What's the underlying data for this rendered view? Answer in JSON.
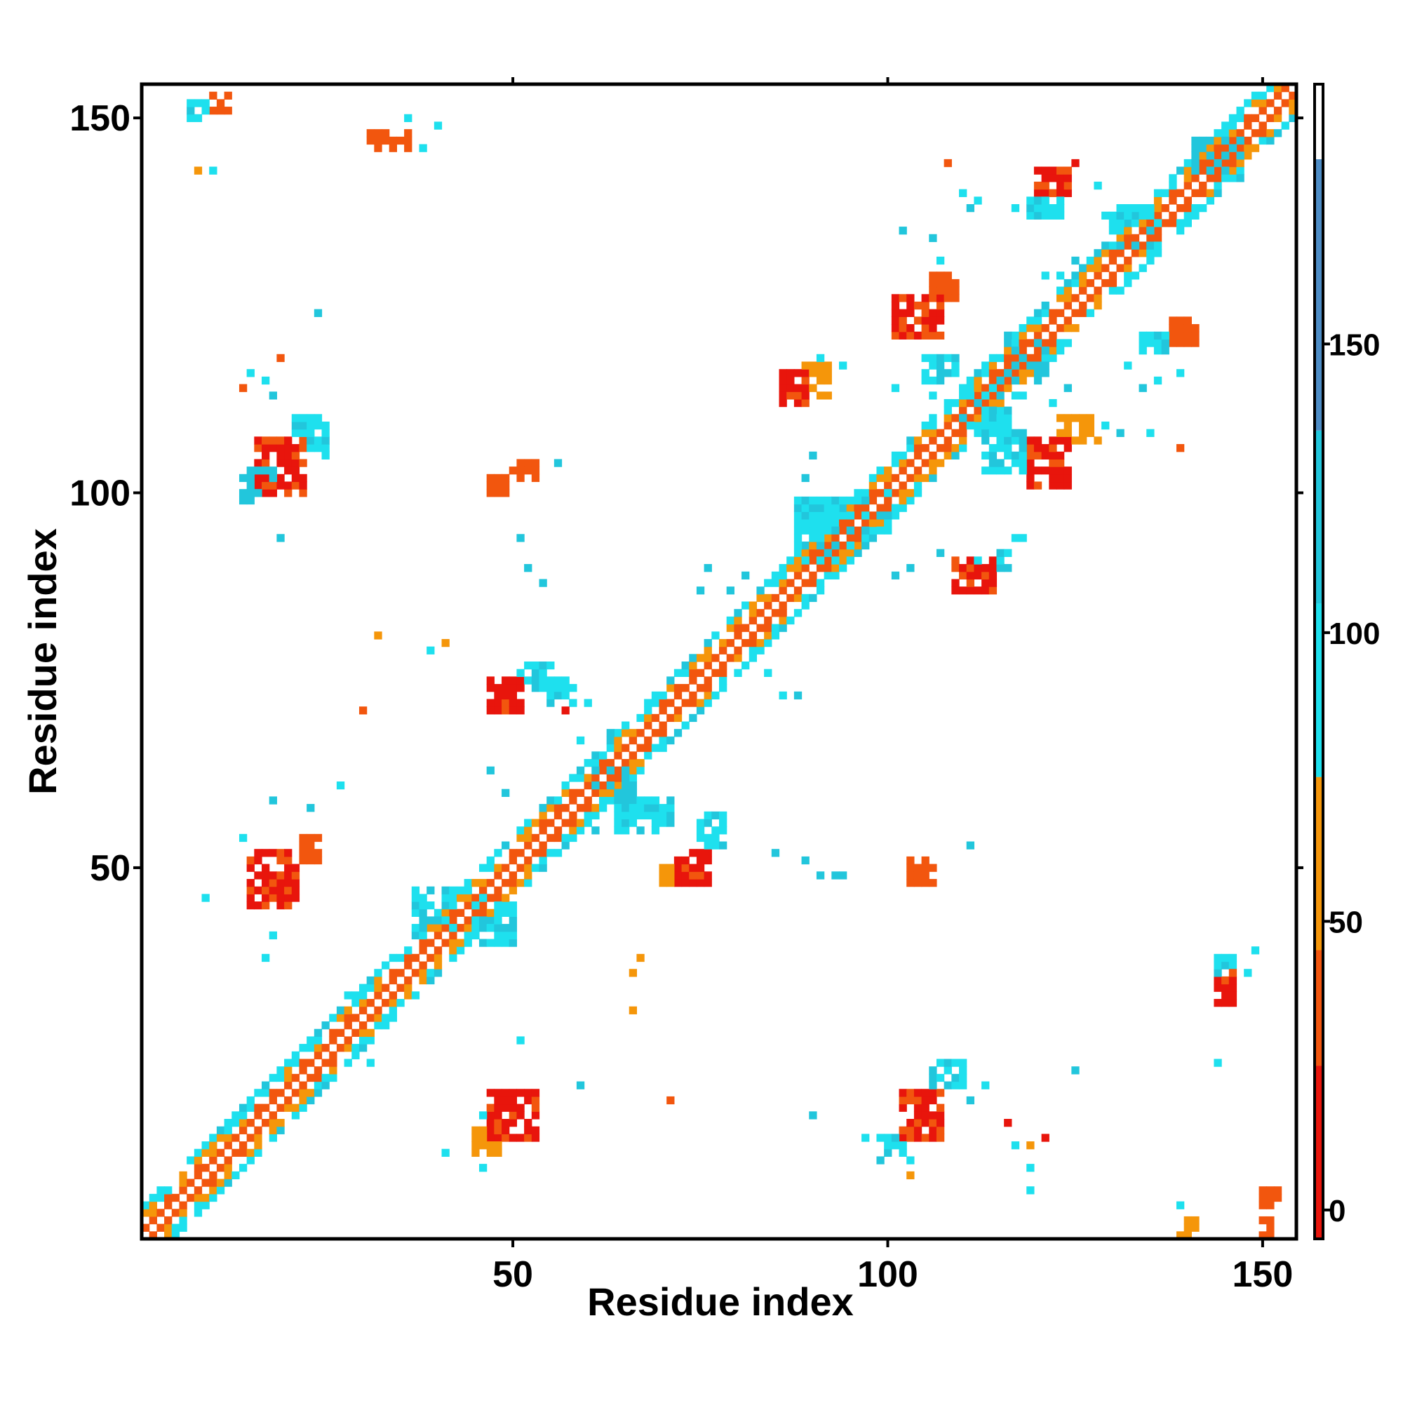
{
  "chart_data": {
    "type": "heatmap",
    "title": "",
    "xlabel": "Residue index",
    "ylabel": "Residue index",
    "xlim": [
      1,
      154
    ],
    "ylim": [
      1,
      154
    ],
    "x_ticks": [
      50,
      100,
      150
    ],
    "y_ticks": [
      50,
      100,
      150
    ],
    "grid": false,
    "cell_value_note": "colour-coded contact value per residue pair",
    "colorbar": {
      "ticks": [
        0,
        50,
        100,
        150
      ],
      "range": [
        -5,
        195
      ],
      "bands": [
        {
          "from": -5,
          "to": 25,
          "color": "#e8150c"
        },
        {
          "from": 25,
          "to": 45,
          "color": "#f2560e"
        },
        {
          "from": 45,
          "to": 75,
          "color": "#f5960a"
        },
        {
          "from": 75,
          "to": 105,
          "color": "#1ee0ee"
        },
        {
          "from": 105,
          "to": 135,
          "color": "#22c6dc"
        },
        {
          "from": 135,
          "to": 182,
          "color": "#4d8cc5"
        },
        {
          "from": 182,
          "to": 195,
          "color": "#ffffff"
        }
      ]
    },
    "colors": {
      "red": "#e8150c",
      "red_orange": "#f2560e",
      "orange": "#f5960a",
      "cyan": "#1ee0ee",
      "teal": "#22c6dc",
      "blue": "#4d8cc5"
    },
    "diagonal_bands": [
      {
        "start": 1,
        "end": 154,
        "halfwidth": 4
      }
    ],
    "patches": [
      {
        "x": [
          16,
          22
        ],
        "y": [
          100,
          107
        ],
        "color": "red"
      },
      {
        "x": [
          14,
          18
        ],
        "y": [
          99,
          103
        ],
        "color": "teal"
      },
      {
        "x": [
          21,
          25
        ],
        "y": [
          106,
          110
        ],
        "color": "cyan"
      },
      {
        "x": [
          15,
          21
        ],
        "y": [
          45,
          52
        ],
        "color": "red"
      },
      {
        "x": [
          22,
          24
        ],
        "y": [
          51,
          54
        ],
        "color": "red_orange"
      },
      {
        "x": [
          47,
          53
        ],
        "y": [
          14,
          20
        ],
        "color": "red"
      },
      {
        "x": [
          45,
          48
        ],
        "y": [
          12,
          15
        ],
        "color": "orange"
      },
      {
        "x": [
          102,
          107
        ],
        "y": [
          14,
          20
        ],
        "color": "red"
      },
      {
        "x": [
          106,
          110
        ],
        "y": [
          21,
          24
        ],
        "color": "cyan"
      },
      {
        "x": [
          99,
          102
        ],
        "y": [
          12,
          14
        ],
        "color": "cyan"
      },
      {
        "x": [
          119,
          124
        ],
        "y": [
          101,
          107
        ],
        "color": "red"
      },
      {
        "x": [
          123,
          128
        ],
        "y": [
          107,
          110
        ],
        "color": "orange"
      },
      {
        "x": [
          113,
          118
        ],
        "y": [
          103,
          108
        ],
        "color": "cyan"
      },
      {
        "x": [
          101,
          107
        ],
        "y": [
          121,
          126
        ],
        "color": "red"
      },
      {
        "x": [
          106,
          109
        ],
        "y": [
          126,
          129
        ],
        "color": "red_orange"
      },
      {
        "x": [
          105,
          109
        ],
        "y": [
          115,
          118
        ],
        "color": "cyan"
      },
      {
        "x": [
          120,
          124
        ],
        "y": [
          140,
          143
        ],
        "color": "red"
      },
      {
        "x": [
          119,
          123
        ],
        "y": [
          137,
          139
        ],
        "color": "cyan"
      },
      {
        "x": [
          47,
          51
        ],
        "y": [
          71,
          75
        ],
        "color": "red"
      },
      {
        "x": [
          51,
          55
        ],
        "y": [
          74,
          77
        ],
        "color": "cyan"
      },
      {
        "x": [
          55,
          58
        ],
        "y": [
          72,
          75
        ],
        "color": "cyan"
      },
      {
        "x": [
          72,
          76
        ],
        "y": [
          48,
          52
        ],
        "color": "red"
      },
      {
        "x": [
          75,
          78
        ],
        "y": [
          53,
          57
        ],
        "color": "cyan"
      },
      {
        "x": [
          70,
          73
        ],
        "y": [
          48,
          50
        ],
        "color": "orange"
      },
      {
        "x": [
          86,
          89
        ],
        "y": [
          112,
          116
        ],
        "color": "red"
      },
      {
        "x": [
          89,
          92
        ],
        "y": [
          113,
          117
        ],
        "color": "orange"
      },
      {
        "x": [
          109,
          114
        ],
        "y": [
          87,
          91
        ],
        "color": "red"
      },
      {
        "x": [
          112,
          116
        ],
        "y": [
          90,
          92
        ],
        "color": "cyan"
      },
      {
        "x": [
          138,
          141
        ],
        "y": [
          120,
          123
        ],
        "color": "red_orange"
      },
      {
        "x": [
          134,
          137
        ],
        "y": [
          119,
          121
        ],
        "color": "cyan"
      },
      {
        "x": [
          144,
          146
        ],
        "y": [
          32,
          35
        ],
        "color": "red"
      },
      {
        "x": [
          144,
          146
        ],
        "y": [
          35,
          38
        ],
        "color": "cyan"
      },
      {
        "x": [
          31,
          36
        ],
        "y": [
          146,
          148
        ],
        "color": "red_orange"
      },
      {
        "x": [
          10,
          12
        ],
        "y": [
          151,
          153
        ],
        "color": "red_orange"
      },
      {
        "x": [
          7,
          9
        ],
        "y": [
          150,
          152
        ],
        "color": "cyan"
      },
      {
        "x": [
          50,
          53
        ],
        "y": [
          102,
          104
        ],
        "color": "red_orange"
      },
      {
        "x": [
          47,
          49
        ],
        "y": [
          100,
          102
        ],
        "color": "red_orange"
      },
      {
        "x": [
          103,
          106
        ],
        "y": [
          48,
          51
        ],
        "color": "red_orange"
      },
      {
        "x": [
          150,
          152
        ],
        "y": [
          5,
          7
        ],
        "color": "red_orange"
      },
      {
        "x": [
          139,
          141
        ],
        "y": [
          1,
          3
        ],
        "color": "orange"
      },
      {
        "x": [
          149,
          151
        ],
        "y": [
          1,
          3
        ],
        "color": "red_orange"
      },
      {
        "x": [
          61,
          66
        ],
        "y": [
          59,
          64
        ],
        "color": "teal"
      },
      {
        "x": [
          64,
          69
        ],
        "y": [
          55,
          59
        ],
        "color": "cyan"
      },
      {
        "x": [
          68,
          71
        ],
        "y": [
          56,
          59
        ],
        "color": "cyan"
      },
      {
        "x": [
          44,
          50
        ],
        "y": [
          40,
          46
        ],
        "color": "cyan"
      },
      {
        "x": [
          37,
          42
        ],
        "y": [
          42,
          47
        ],
        "color": "cyan"
      },
      {
        "x": [
          88,
          95
        ],
        "y": [
          91,
          99
        ],
        "color": "cyan"
      },
      {
        "x": [
          95,
          100
        ],
        "y": [
          95,
          100
        ],
        "color": "cyan"
      },
      {
        "x": [
          110,
          116
        ],
        "y": [
          109,
          116
        ],
        "color": "cyan"
      },
      {
        "x": [
          116,
          121
        ],
        "y": [
          115,
          121
        ],
        "color": "teal"
      },
      {
        "x": [
          130,
          136
        ],
        "y": [
          133,
          138
        ],
        "color": "cyan"
      },
      {
        "x": [
          141,
          147
        ],
        "y": [
          142,
          147
        ],
        "color": "teal"
      }
    ],
    "scatter_points": [
      [
        24,
        107,
        "orange"
      ],
      [
        25,
        105,
        "cyan"
      ],
      [
        14,
        54,
        "cyan"
      ],
      [
        18,
        59,
        "teal"
      ],
      [
        23,
        58,
        "teal"
      ],
      [
        9,
        46,
        "cyan"
      ],
      [
        18,
        41,
        "cyan"
      ],
      [
        17,
        38,
        "cyan"
      ],
      [
        28,
        33,
        "cyan"
      ],
      [
        34,
        33,
        "orange"
      ],
      [
        36,
        34,
        "red_orange"
      ],
      [
        30,
        71,
        "red_orange"
      ],
      [
        32,
        81,
        "orange"
      ],
      [
        39,
        79,
        "cyan"
      ],
      [
        41,
        80,
        "orange"
      ],
      [
        17,
        115,
        "cyan"
      ],
      [
        19,
        94,
        "teal"
      ],
      [
        18,
        113,
        "teal"
      ],
      [
        15,
        116,
        "cyan"
      ],
      [
        14,
        114,
        "red_orange"
      ],
      [
        19,
        118,
        "red_orange"
      ],
      [
        24,
        124,
        "teal"
      ],
      [
        10,
        143,
        "cyan"
      ],
      [
        8,
        143,
        "orange"
      ],
      [
        36,
        150,
        "cyan"
      ],
      [
        40,
        149,
        "cyan"
      ],
      [
        38,
        146,
        "cyan"
      ],
      [
        27,
        61,
        "cyan"
      ],
      [
        47,
        63,
        "teal"
      ],
      [
        49,
        60,
        "teal"
      ],
      [
        52,
        90,
        "teal"
      ],
      [
        54,
        88,
        "teal"
      ],
      [
        51,
        94,
        "teal"
      ],
      [
        56,
        104,
        "teal"
      ],
      [
        59,
        67,
        "cyan"
      ],
      [
        57,
        71,
        "red"
      ],
      [
        60,
        72,
        "cyan"
      ],
      [
        63,
        68,
        "teal"
      ],
      [
        61,
        55,
        "teal"
      ],
      [
        73,
        49,
        "red"
      ],
      [
        66,
        36,
        "orange"
      ],
      [
        67,
        38,
        "orange"
      ],
      [
        66,
        31,
        "orange"
      ],
      [
        71,
        19,
        "red_orange"
      ],
      [
        59,
        21,
        "teal"
      ],
      [
        51,
        27,
        "cyan"
      ],
      [
        46,
        17,
        "cyan"
      ],
      [
        41,
        12,
        "cyan"
      ],
      [
        46,
        10,
        "cyan"
      ],
      [
        31,
        24,
        "cyan"
      ],
      [
        75,
        87,
        "teal"
      ],
      [
        76,
        90,
        "teal"
      ],
      [
        84,
        76,
        "cyan"
      ],
      [
        86,
        73,
        "cyan"
      ],
      [
        88,
        73,
        "teal"
      ],
      [
        85,
        52,
        "teal"
      ],
      [
        89,
        51,
        "teal"
      ],
      [
        91,
        49,
        "teal"
      ],
      [
        93,
        49,
        "teal"
      ],
      [
        90,
        105,
        "teal"
      ],
      [
        89,
        102,
        "teal"
      ],
      [
        91,
        118,
        "cyan"
      ],
      [
        94,
        117,
        "cyan"
      ],
      [
        101,
        89,
        "teal"
      ],
      [
        103,
        90,
        "teal"
      ],
      [
        107,
        92,
        "teal"
      ],
      [
        111,
        53,
        "teal"
      ],
      [
        108,
        110,
        "teal"
      ],
      [
        118,
        94,
        "cyan"
      ],
      [
        117,
        94,
        "cyan"
      ],
      [
        105,
        125,
        "red_orange"
      ],
      [
        101,
        114,
        "cyan"
      ],
      [
        106,
        113,
        "cyan"
      ],
      [
        121,
        120,
        "teal"
      ],
      [
        122,
        112,
        "cyan"
      ],
      [
        118,
        113,
        "cyan"
      ],
      [
        124,
        114,
        "teal"
      ],
      [
        129,
        109,
        "cyan"
      ],
      [
        131,
        108,
        "teal"
      ],
      [
        135,
        108,
        "cyan"
      ],
      [
        139,
        106,
        "red_orange"
      ],
      [
        136,
        115,
        "cyan"
      ],
      [
        139,
        116,
        "cyan"
      ],
      [
        139,
        121,
        "red"
      ],
      [
        134,
        114,
        "teal"
      ],
      [
        132,
        117,
        "cyan"
      ],
      [
        121,
        129,
        "cyan"
      ],
      [
        125,
        131,
        "teal"
      ],
      [
        112,
        139,
        "cyan"
      ],
      [
        110,
        140,
        "cyan"
      ],
      [
        106,
        134,
        "teal"
      ],
      [
        102,
        135,
        "teal"
      ],
      [
        107,
        131,
        "cyan"
      ],
      [
        108,
        144,
        "red_orange"
      ],
      [
        111,
        138,
        "teal"
      ],
      [
        117,
        138,
        "cyan"
      ],
      [
        123,
        129,
        "cyan"
      ],
      [
        129,
        137,
        "cyan"
      ],
      [
        125,
        144,
        "red"
      ],
      [
        128,
        141,
        "cyan"
      ],
      [
        113,
        21,
        "cyan"
      ],
      [
        111,
        19,
        "teal"
      ],
      [
        107,
        22,
        "cyan"
      ],
      [
        103,
        9,
        "orange"
      ],
      [
        99,
        11,
        "teal"
      ],
      [
        97,
        14,
        "cyan"
      ],
      [
        103,
        11,
        "cyan"
      ],
      [
        121,
        14,
        "red"
      ],
      [
        119,
        13,
        "orange"
      ],
      [
        117,
        13,
        "cyan"
      ],
      [
        119,
        10,
        "cyan"
      ],
      [
        119,
        7,
        "cyan"
      ],
      [
        125,
        23,
        "teal"
      ],
      [
        116,
        16,
        "red"
      ],
      [
        139,
        5,
        "cyan"
      ],
      [
        148,
        36,
        "cyan"
      ],
      [
        149,
        39,
        "cyan"
      ],
      [
        146,
        36,
        "red_orange"
      ],
      [
        144,
        24,
        "cyan"
      ],
      [
        90,
        17,
        "teal"
      ],
      [
        81,
        89,
        "teal"
      ],
      [
        79,
        87,
        "teal"
      ],
      [
        82,
        84,
        "teal"
      ],
      [
        94,
        49,
        "teal"
      ]
    ]
  }
}
